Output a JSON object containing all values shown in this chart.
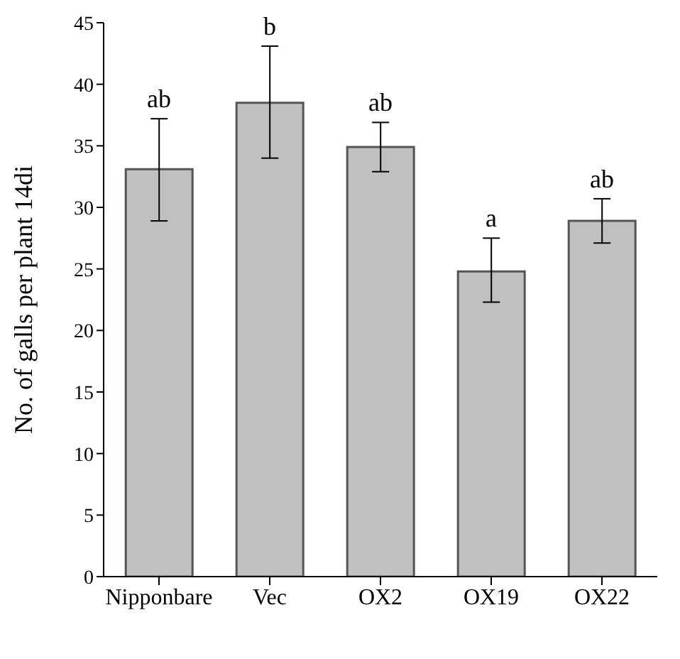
{
  "chart_data": {
    "type": "bar",
    "ylabel": "No. of galls per plant 14di",
    "categories": [
      "Nipponbare",
      "Vec",
      "OX2",
      "OX19",
      "OX22"
    ],
    "values": [
      33.1,
      38.5,
      34.9,
      24.8,
      28.9
    ],
    "errors": [
      [
        28.9,
        37.2
      ],
      [
        34.0,
        43.1
      ],
      [
        32.9,
        36.9
      ],
      [
        22.3,
        27.5
      ],
      [
        27.1,
        30.7
      ]
    ],
    "color": "#c0c0c0",
    "ylim": [
      0,
      45
    ],
    "yticks": [
      0,
      5,
      10,
      15,
      20,
      25,
      30,
      35,
      40,
      45
    ],
    "grid": false,
    "annotations": [
      {
        "text": "ab",
        "x": "Nipponbare",
        "y": 37.2
      },
      {
        "text": "b",
        "x": "Vec",
        "y": 43.1
      },
      {
        "text": "ab",
        "x": "OX2",
        "y": 36.9
      },
      {
        "text": "a",
        "x": "OX19",
        "y": 27.5
      },
      {
        "text": "ab",
        "x": "OX22",
        "y": 30.7
      }
    ]
  }
}
